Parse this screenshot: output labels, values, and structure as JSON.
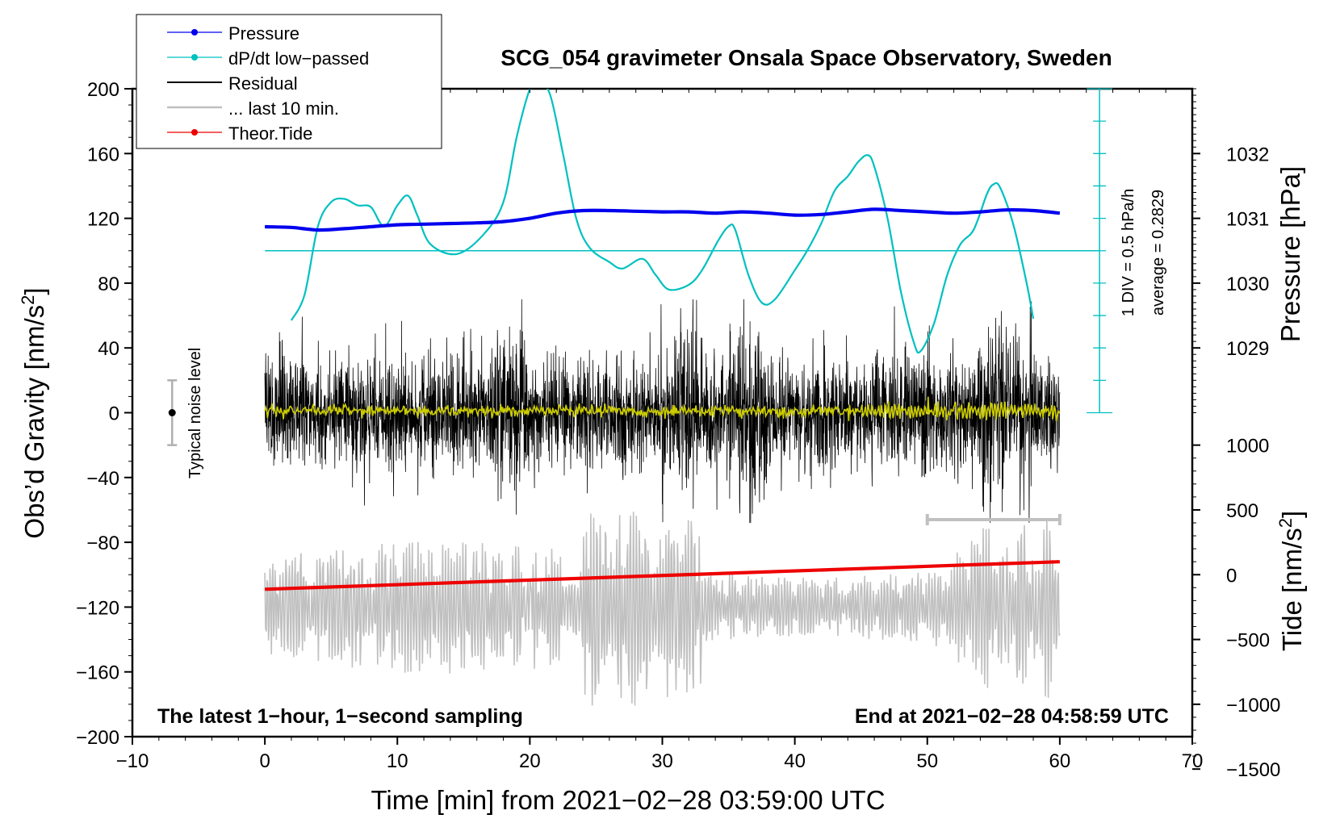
{
  "chart_data": {
    "type": "line",
    "title": "SCG_054 gravimeter Onsala Space Observatory, Sweden",
    "xlabel": "Time [min] from 2021−02−28 03:59:00 UTC",
    "ylabel_left": "Obs’d Gravity [nm/s",
    "ylabel_left_sup": "2",
    "ylabel_left_end": "]",
    "ylabel_right_pressure": "Pressure [hPa]",
    "ylabel_right_tide": "Tide [nm/s",
    "ylabel_right_tide_sup": "2",
    "ylabel_right_tide_end": "]",
    "xlim": [
      -10,
      70
    ],
    "ylim_gravity": [
      -200,
      200
    ],
    "x_ticks": [
      {
        "value": -10,
        "label": "−10"
      },
      {
        "value": 0,
        "label": "0"
      },
      {
        "value": 10,
        "label": "10"
      },
      {
        "value": 20,
        "label": "20"
      },
      {
        "value": 30,
        "label": "30"
      },
      {
        "value": 40,
        "label": "40"
      },
      {
        "value": 50,
        "label": "50"
      },
      {
        "value": 60,
        "label": "60"
      },
      {
        "value": 70,
        "label": "70"
      }
    ],
    "gravity_ticks": [
      {
        "value": 200,
        "label": "200"
      },
      {
        "value": 160,
        "label": "160"
      },
      {
        "value": 120,
        "label": "120"
      },
      {
        "value": 80,
        "label": "80"
      },
      {
        "value": 40,
        "label": "40"
      },
      {
        "value": 0,
        "label": "0"
      },
      {
        "value": -40,
        "label": "−40"
      },
      {
        "value": -80,
        "label": "−80"
      },
      {
        "value": -120,
        "label": "−120"
      },
      {
        "value": -160,
        "label": "−160"
      },
      {
        "value": -200,
        "label": "−200"
      }
    ],
    "pressure_axis": {
      "hpa_per_nms2": 0.025,
      "ref_gravity": 0,
      "ref_hpa": 1028,
      "ticks": [
        {
          "value": 1032,
          "label": "1032"
        },
        {
          "value": 1031,
          "label": "1031"
        },
        {
          "value": 1030,
          "label": "1030"
        },
        {
          "value": 1029,
          "label": "1029"
        }
      ]
    },
    "tide_axis": {
      "tide_per_nms2": 12.5,
      "ref_gravity": -100,
      "ref_tide": 0,
      "ticks": [
        {
          "value": 1000,
          "label": "1000"
        },
        {
          "value": 500,
          "label": "500"
        },
        {
          "value": 0,
          "label": "0"
        },
        {
          "value": -500,
          "label": "−500"
        },
        {
          "value": -1000,
          "label": "−1000"
        },
        {
          "value": -1500,
          "label": "−1500"
        }
      ]
    },
    "dpdt_scale": {
      "x_minutes": 63,
      "gravity_from": 0,
      "gravity_to": 200,
      "divisions": 10,
      "label_div": "1 DIV = 0.5 hPa/h",
      "label_avg": "average = 0.2829",
      "reference_gravity": 100
    },
    "noise_level": {
      "x": -7,
      "y": 0,
      "half_range": 20,
      "label": "Typical noise level"
    },
    "last10_bar": {
      "x_start": 50,
      "x_end": 60,
      "gravity": -66
    },
    "series": [
      {
        "name": "Pressure",
        "color": "#0000ee",
        "units": "hPa",
        "points": [
          [
            0,
            1030.87
          ],
          [
            2,
            1030.86
          ],
          [
            4,
            1030.82
          ],
          [
            6,
            1030.84
          ],
          [
            8,
            1030.87
          ],
          [
            10,
            1030.9
          ],
          [
            12,
            1030.91
          ],
          [
            14,
            1030.92
          ],
          [
            16,
            1030.93
          ],
          [
            18,
            1030.95
          ],
          [
            20,
            1031.0
          ],
          [
            22,
            1031.08
          ],
          [
            24,
            1031.12
          ],
          [
            26,
            1031.12
          ],
          [
            28,
            1031.11
          ],
          [
            30,
            1031.1
          ],
          [
            32,
            1031.1
          ],
          [
            34,
            1031.08
          ],
          [
            36,
            1031.1
          ],
          [
            38,
            1031.08
          ],
          [
            40,
            1031.05
          ],
          [
            42,
            1031.06
          ],
          [
            44,
            1031.1
          ],
          [
            46,
            1031.14
          ],
          [
            48,
            1031.12
          ],
          [
            50,
            1031.1
          ],
          [
            52,
            1031.08
          ],
          [
            54,
            1031.1
          ],
          [
            56,
            1031.13
          ],
          [
            58,
            1031.12
          ],
          [
            60,
            1031.08
          ]
        ]
      },
      {
        "name": "dP/dt low−passed",
        "color": "#00c0c0",
        "units": "nm/s2",
        "points": [
          [
            2,
            57
          ],
          [
            3,
            73
          ],
          [
            4,
            115
          ],
          [
            5,
            130
          ],
          [
            6,
            132
          ],
          [
            7,
            128
          ],
          [
            8,
            127
          ],
          [
            9,
            115
          ],
          [
            10,
            128
          ],
          [
            10.8,
            134
          ],
          [
            11.5,
            122
          ],
          [
            12.5,
            104
          ],
          [
            14.5,
            98
          ],
          [
            16.5,
            110
          ],
          [
            18,
            130
          ],
          [
            19,
            170
          ],
          [
            20,
            200
          ],
          [
            20.5,
            205
          ],
          [
            21.5,
            197
          ],
          [
            22.5,
            160
          ],
          [
            23.5,
            120
          ],
          [
            24.5,
            102
          ],
          [
            26,
            93
          ],
          [
            27,
            89
          ],
          [
            28.5,
            95
          ],
          [
            29.5,
            85
          ],
          [
            30.5,
            76
          ],
          [
            32,
            79
          ],
          [
            33,
            88
          ],
          [
            34.2,
            106
          ],
          [
            35,
            115
          ],
          [
            35.5,
            113
          ],
          [
            36.5,
            85
          ],
          [
            37.5,
            68
          ],
          [
            38.5,
            70
          ],
          [
            40,
            88
          ],
          [
            41,
            101
          ],
          [
            42,
            117
          ],
          [
            43,
            137
          ],
          [
            44,
            146
          ],
          [
            44.8,
            155
          ],
          [
            45.5,
            159
          ],
          [
            46,
            152
          ],
          [
            47,
            120
          ],
          [
            48,
            75
          ],
          [
            49,
            43
          ],
          [
            49.5,
            38
          ],
          [
            50.5,
            55
          ],
          [
            51.5,
            85
          ],
          [
            52.5,
            104
          ],
          [
            53.5,
            113
          ],
          [
            54.5,
            135
          ],
          [
            55,
            141
          ],
          [
            55.5,
            139
          ],
          [
            56.5,
            116
          ],
          [
            57.5,
            80
          ],
          [
            58,
            58
          ]
        ]
      },
      {
        "name": "Residual",
        "color": "#000000",
        "units": "nm/s2",
        "description": "1-second sampled residual, noisy within about ±60 nm/s2"
      },
      {
        "name": "... last 10 min.",
        "color": "#c0c0c0",
        "units": "nm/s2",
        "description": "last 10 minutes residual re-plotted, oscillating about −120 nm/s2"
      },
      {
        "name": "Theor.Tide",
        "color": "#ee0000",
        "units": "nm/s2",
        "points": [
          [
            0,
            -109
          ],
          [
            60,
            -92
          ]
        ]
      },
      {
        "name": "low-passed residual",
        "color": "#cccc00",
        "units": "nm/s2",
        "description": "smoothed residual near 0 nm/s2"
      }
    ],
    "annotations": {
      "bottom_left": "The latest 1−hour, 1−second sampling",
      "bottom_right": "End at 2021−02−28 04:58:59 UTC"
    },
    "legend": {
      "position": "top-left",
      "entries": [
        {
          "label": "Pressure",
          "color": "#0000ee",
          "marker": true
        },
        {
          "label": "dP/dt low−passed",
          "color": "#00c0c0",
          "marker": true
        },
        {
          "label": "Residual",
          "color": "#000000",
          "marker": false
        },
        {
          "label": "... last 10 min.",
          "color": "#c0c0c0",
          "marker": false
        },
        {
          "label": "Theor.Tide",
          "color": "#ee0000",
          "marker": true
        }
      ]
    }
  }
}
